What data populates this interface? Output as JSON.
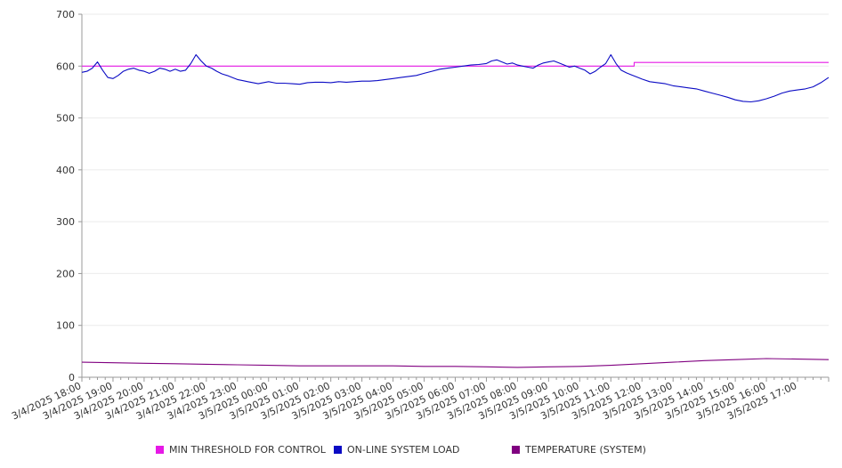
{
  "chart_data": {
    "type": "line",
    "title": "",
    "xlabel": "",
    "ylabel": "",
    "ylim": [
      0,
      700
    ],
    "yticks": [
      0,
      100,
      200,
      300,
      400,
      500,
      600,
      700
    ],
    "grid": true,
    "legend_position": "bottom",
    "xlim": [
      "3/4/2025 18:00",
      "3/5/2025 18:00"
    ],
    "x_tick_labels": [
      "3/4/2025 18:00",
      "3/4/2025 19:00",
      "3/4/2025 20:00",
      "3/4/2025 21:00",
      "3/4/2025 22:00",
      "3/4/2025 23:00",
      "3/5/2025 00:00",
      "3/5/2025 01:00",
      "3/5/2025 02:00",
      "3/5/2025 03:00",
      "3/5/2025 04:00",
      "3/5/2025 05:00",
      "3/5/2025 06:00",
      "3/5/2025 07:00",
      "3/5/2025 08:00",
      "3/5/2025 09:00",
      "3/5/2025 10:00",
      "3/5/2025 11:00",
      "3/5/2025 12:00",
      "3/5/2025 13:00",
      "3/5/2025 14:00",
      "3/5/2025 15:00",
      "3/5/2025 16:00",
      "3/5/2025 17:00"
    ],
    "series": [
      {
        "name": "MIN THRESHOLD FOR CONTROL",
        "color": "#e619e6",
        "x": [
          "3/4/2025 18:00",
          "3/5/2025 11:45",
          "3/5/2025 11:45",
          "3/5/2025 18:00"
        ],
        "y": [
          600,
          600,
          607,
          607
        ]
      },
      {
        "name": "ON-LINE SYSTEM LOAD",
        "color": "#0b0bc4",
        "x": [
          "3/4/2025 18:00",
          "3/4/2025 18:10",
          "3/4/2025 18:20",
          "3/4/2025 18:30",
          "3/4/2025 18:40",
          "3/4/2025 18:50",
          "3/4/2025 19:00",
          "3/4/2025 19:10",
          "3/4/2025 19:20",
          "3/4/2025 19:30",
          "3/4/2025 19:40",
          "3/4/2025 19:50",
          "3/4/2025 20:00",
          "3/4/2025 20:10",
          "3/4/2025 20:20",
          "3/4/2025 20:30",
          "3/4/2025 20:40",
          "3/4/2025 20:50",
          "3/4/2025 21:00",
          "3/4/2025 21:10",
          "3/4/2025 21:20",
          "3/4/2025 21:30",
          "3/4/2025 21:40",
          "3/4/2025 21:50",
          "3/4/2025 22:00",
          "3/4/2025 22:10",
          "3/4/2025 22:20",
          "3/4/2025 22:30",
          "3/4/2025 22:40",
          "3/4/2025 22:50",
          "3/4/2025 23:00",
          "3/4/2025 23:10",
          "3/4/2025 23:20",
          "3/4/2025 23:30",
          "3/4/2025 23:40",
          "3/4/2025 23:50",
          "3/5/2025 00:00",
          "3/5/2025 00:15",
          "3/5/2025 00:30",
          "3/5/2025 00:45",
          "3/5/2025 01:00",
          "3/5/2025 01:15",
          "3/5/2025 01:30",
          "3/5/2025 01:45",
          "3/5/2025 02:00",
          "3/5/2025 02:15",
          "3/5/2025 02:30",
          "3/5/2025 02:45",
          "3/5/2025 03:00",
          "3/5/2025 03:15",
          "3/5/2025 03:30",
          "3/5/2025 03:45",
          "3/5/2025 04:00",
          "3/5/2025 04:15",
          "3/5/2025 04:30",
          "3/5/2025 04:45",
          "3/5/2025 05:00",
          "3/5/2025 05:15",
          "3/5/2025 05:30",
          "3/5/2025 05:45",
          "3/5/2025 06:00",
          "3/5/2025 06:15",
          "3/5/2025 06:30",
          "3/5/2025 06:45",
          "3/5/2025 07:00",
          "3/5/2025 07:10",
          "3/5/2025 07:20",
          "3/5/2025 07:30",
          "3/5/2025 07:40",
          "3/5/2025 07:50",
          "3/5/2025 08:00",
          "3/5/2025 08:10",
          "3/5/2025 08:20",
          "3/5/2025 08:30",
          "3/5/2025 08:40",
          "3/5/2025 08:50",
          "3/5/2025 09:00",
          "3/5/2025 09:10",
          "3/5/2025 09:20",
          "3/5/2025 09:30",
          "3/5/2025 09:40",
          "3/5/2025 09:50",
          "3/5/2025 10:00",
          "3/5/2025 10:10",
          "3/5/2025 10:20",
          "3/5/2025 10:30",
          "3/5/2025 10:40",
          "3/5/2025 10:50",
          "3/5/2025 11:00",
          "3/5/2025 11:10",
          "3/5/2025 11:20",
          "3/5/2025 11:30",
          "3/5/2025 11:40",
          "3/5/2025 11:50",
          "3/5/2025 12:00",
          "3/5/2025 12:15",
          "3/5/2025 12:30",
          "3/5/2025 12:45",
          "3/5/2025 13:00",
          "3/5/2025 13:15",
          "3/5/2025 13:30",
          "3/5/2025 13:45",
          "3/5/2025 14:00",
          "3/5/2025 14:15",
          "3/5/2025 14:30",
          "3/5/2025 14:45",
          "3/5/2025 15:00",
          "3/5/2025 15:15",
          "3/5/2025 15:30",
          "3/5/2025 15:45",
          "3/5/2025 16:00",
          "3/5/2025 16:15",
          "3/5/2025 16:30",
          "3/5/2025 16:45",
          "3/5/2025 17:00",
          "3/5/2025 17:15",
          "3/5/2025 17:30",
          "3/5/2025 17:45",
          "3/5/2025 18:00"
        ],
        "y": [
          588,
          590,
          596,
          608,
          592,
          578,
          576,
          582,
          590,
          594,
          596,
          592,
          590,
          586,
          590,
          596,
          594,
          590,
          594,
          590,
          592,
          605,
          622,
          610,
          600,
          596,
          590,
          585,
          582,
          578,
          574,
          572,
          570,
          568,
          566,
          568,
          570,
          567,
          567,
          566,
          565,
          568,
          569,
          569,
          568,
          570,
          569,
          570,
          571,
          571,
          572,
          574,
          576,
          578,
          580,
          582,
          586,
          590,
          594,
          596,
          598,
          600,
          602,
          603,
          605,
          610,
          612,
          608,
          604,
          606,
          602,
          600,
          598,
          596,
          602,
          606,
          608,
          610,
          606,
          602,
          598,
          600,
          596,
          592,
          585,
          590,
          598,
          605,
          622,
          605,
          592,
          587,
          583,
          579,
          575,
          570,
          568,
          566,
          562,
          560,
          558,
          556,
          552,
          548,
          544,
          540,
          535,
          532,
          531,
          533,
          537,
          542,
          548,
          552,
          554,
          556,
          560,
          568,
          578
        ]
      },
      {
        "name": "TEMPERATURE (SYSTEM)",
        "color": "#800080",
        "x": [
          "3/4/2025 18:00",
          "3/4/2025 19:00",
          "3/4/2025 20:00",
          "3/4/2025 21:00",
          "3/4/2025 22:00",
          "3/4/2025 23:00",
          "3/5/2025 00:00",
          "3/5/2025 01:00",
          "3/5/2025 02:00",
          "3/5/2025 03:00",
          "3/5/2025 04:00",
          "3/5/2025 05:00",
          "3/5/2025 06:00",
          "3/5/2025 07:00",
          "3/5/2025 08:00",
          "3/5/2025 09:00",
          "3/5/2025 10:00",
          "3/5/2025 11:00",
          "3/5/2025 12:00",
          "3/5/2025 13:00",
          "3/5/2025 14:00",
          "3/5/2025 15:00",
          "3/5/2025 16:00",
          "3/5/2025 17:00",
          "3/5/2025 18:00"
        ],
        "y": [
          29,
          28,
          27,
          26,
          25,
          24,
          23,
          22,
          22,
          22,
          22,
          21,
          21,
          20,
          19,
          20,
          21,
          23,
          26,
          29,
          32,
          34,
          36,
          35,
          34
        ]
      }
    ]
  }
}
